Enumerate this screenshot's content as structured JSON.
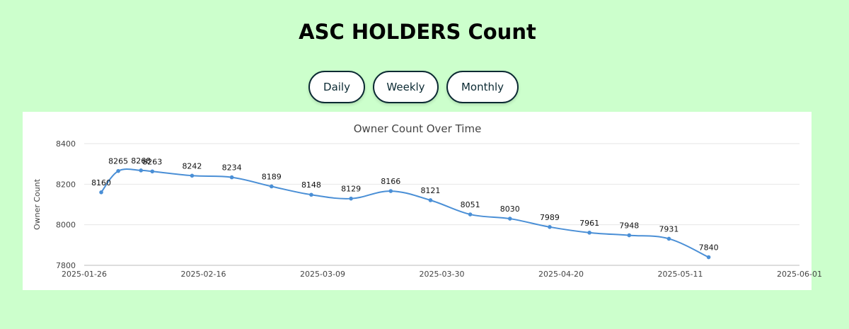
{
  "header": {
    "title": "ASC HOLDERS Count"
  },
  "range_buttons": {
    "daily": "Daily",
    "weekly": "Weekly",
    "monthly": "Monthly"
  },
  "colors": {
    "background": "#ccffcc",
    "line": "#4a8fd6",
    "button_border": "#0b2a33"
  },
  "chart_data": {
    "type": "line",
    "title": "Owner Count Over Time",
    "xlabel": "",
    "ylabel": "Owner Count",
    "ylim": [
      7800,
      8400
    ],
    "yticks": [
      7800,
      8000,
      8200,
      8400
    ],
    "xlim": [
      "2025-01-26",
      "2025-06-01"
    ],
    "xticks": [
      "2025-01-26",
      "2025-02-16",
      "2025-03-09",
      "2025-03-30",
      "2025-04-20",
      "2025-05-11",
      "2025-06-01"
    ],
    "grid": true,
    "series": [
      {
        "x": [
          "2025-01-29",
          "2025-02-01",
          "2025-02-05",
          "2025-02-07",
          "2025-02-14",
          "2025-02-21",
          "2025-02-28",
          "2025-03-07",
          "2025-03-14",
          "2025-03-21",
          "2025-03-28",
          "2025-04-04",
          "2025-04-11",
          "2025-04-18",
          "2025-04-25",
          "2025-05-02",
          "2025-05-09",
          "2025-05-16"
        ],
        "values": [
          8160,
          8265,
          8268,
          8263,
          8242,
          8234,
          8189,
          8148,
          8129,
          8166,
          8121,
          8051,
          8030,
          7989,
          7961,
          7948,
          7931,
          7840
        ]
      }
    ]
  }
}
